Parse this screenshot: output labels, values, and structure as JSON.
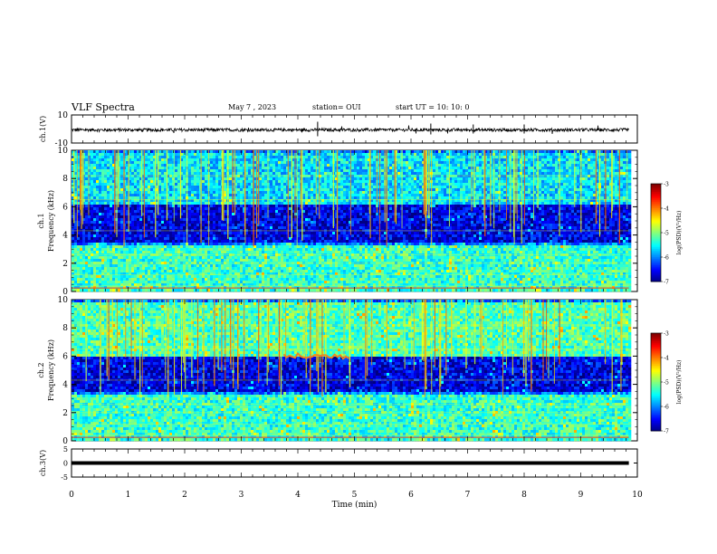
{
  "header": {
    "title": "VLF Spectra",
    "date": "May 7 , 2023",
    "station": "station= OUI",
    "start": "start  UT =   10: 10: 0"
  },
  "chart_data": [
    {
      "type": "line",
      "panel": "ch.1 waveform",
      "ylabel": "ch.1(V)",
      "ylim": [
        -10,
        10
      ],
      "yticks": [
        "10",
        "-10"
      ],
      "xlim": [
        0,
        10
      ],
      "series": [
        {
          "values_approx_baseline": 0
        }
      ],
      "color": "#000000"
    },
    {
      "type": "heatmap",
      "panel": "ch.1 spectrogram",
      "ylabel": "ch.1\nFrequency (kHz)",
      "ylim": [
        0,
        10
      ],
      "yticks": [
        "0",
        "2",
        "4",
        "6",
        "8",
        "10"
      ],
      "xlim": [
        0,
        9.85
      ],
      "colorbar": {
        "label": "log(PSD)(V²/Hz)",
        "range": [
          -7,
          -3
        ],
        "ticks": [
          "-3",
          "-4",
          "-5",
          "-6",
          "-7"
        ]
      },
      "bands": [
        {
          "f_low": 0,
          "f_high": 3.3,
          "level": -5.3,
          "desc": "broad green band"
        },
        {
          "f_low": 3.5,
          "f_high": 6.2,
          "level": -6.6,
          "desc": "dark blue quiet region"
        },
        {
          "f_low": 6.2,
          "f_high": 10,
          "level": -5.6,
          "desc": "cyan/green upper band"
        }
      ]
    },
    {
      "type": "heatmap",
      "panel": "ch.2 spectrogram",
      "ylabel": "ch.2\nFrequency (kHz)",
      "ylim": [
        0,
        10
      ],
      "yticks": [
        "0",
        "2",
        "4",
        "6",
        "8",
        "10"
      ],
      "xlim": [
        0,
        9.85
      ],
      "colorbar": {
        "label": "log(PSD)(V²/Hz)",
        "range": [
          -7,
          -3
        ],
        "ticks": [
          "-3",
          "-4",
          "-5",
          "-6",
          "-7"
        ]
      },
      "bands": [
        {
          "f_low": 0,
          "f_high": 3.3,
          "level": -5.3,
          "desc": "broad green band"
        },
        {
          "f_low": 3.5,
          "f_high": 6.0,
          "level": -6.6,
          "desc": "dark blue quiet region"
        },
        {
          "f_low": 6.0,
          "f_high": 10,
          "level": -5.2,
          "desc": "green/yellow upper band"
        }
      ],
      "features": [
        {
          "t_start": 3.75,
          "t_end": 4.9,
          "freq": 6.0,
          "desc": "orange emission"
        }
      ]
    },
    {
      "type": "line",
      "panel": "ch.3 waveform",
      "ylabel": "ch.3(V)",
      "ylim": [
        -5,
        5
      ],
      "yticks": [
        "5",
        "0",
        "-5"
      ],
      "xlim": [
        0,
        10
      ],
      "series": [
        {
          "values_approx_baseline": 0
        }
      ],
      "xlabel": "Time (min)",
      "xticks": [
        "0",
        "1",
        "2",
        "3",
        "4",
        "5",
        "6",
        "7",
        "8",
        "9",
        "10"
      ]
    }
  ]
}
